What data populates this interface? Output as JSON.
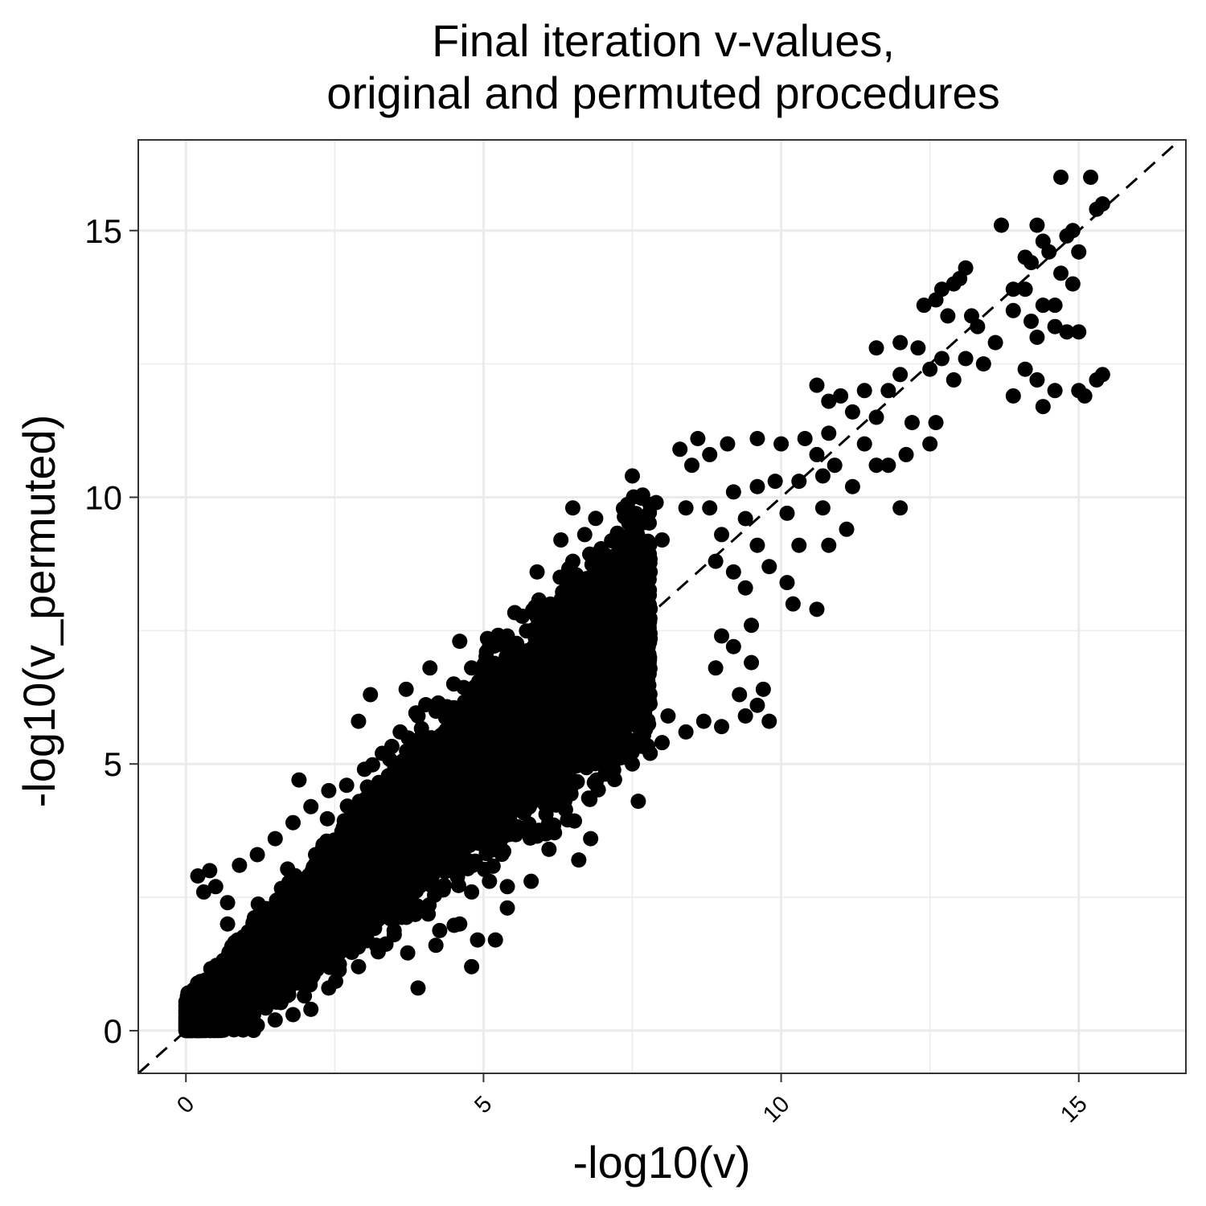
{
  "chart_data": {
    "type": "scatter",
    "title_line1": "Final iteration v-values,",
    "title_line2": "original and permuted procedures",
    "xlabel": "-log10(v)",
    "ylabel": "-log10(v_permuted)",
    "xlim": [
      -0.8,
      16.8
    ],
    "ylim": [
      -0.8,
      16.7
    ],
    "x_ticks": [
      {
        "value": 0,
        "label": "0"
      },
      {
        "value": 5,
        "label": "5"
      },
      {
        "value": 10,
        "label": "10"
      },
      {
        "value": 15,
        "label": "15"
      }
    ],
    "y_ticks": [
      {
        "value": 0,
        "label": "0"
      },
      {
        "value": 5,
        "label": "5"
      },
      {
        "value": 10,
        "label": "10"
      },
      {
        "value": 15,
        "label": "15"
      }
    ],
    "minor_breaks_x": [
      2.5,
      7.5,
      12.5
    ],
    "minor_breaks_y": [
      2.5,
      7.5,
      12.5
    ],
    "reference_line": {
      "slope": 1,
      "intercept": 0,
      "style": "dashed"
    },
    "point_color": "#000000",
    "panel_border_color": "#333333",
    "grid_color": "#ebebeb",
    "grid": true,
    "legend": "none",
    "points": [
      [
        14.7,
        16.0
      ],
      [
        15.2,
        16.0
      ],
      [
        15.4,
        15.5
      ],
      [
        15.3,
        15.4
      ],
      [
        14.3,
        15.1
      ],
      [
        13.7,
        15.1
      ],
      [
        14.9,
        15.0
      ],
      [
        14.4,
        14.8
      ],
      [
        14.8,
        14.9
      ],
      [
        14.5,
        14.6
      ],
      [
        15.0,
        14.6
      ],
      [
        14.1,
        14.5
      ],
      [
        14.2,
        14.4
      ],
      [
        13.1,
        14.3
      ],
      [
        13.0,
        14.1
      ],
      [
        12.9,
        14.0
      ],
      [
        12.7,
        13.9
      ],
      [
        13.9,
        13.9
      ],
      [
        14.1,
        13.9
      ],
      [
        14.9,
        14.0
      ],
      [
        14.7,
        14.2
      ],
      [
        14.4,
        13.6
      ],
      [
        14.6,
        13.6
      ],
      [
        13.9,
        13.5
      ],
      [
        12.4,
        13.6
      ],
      [
        12.6,
        13.7
      ],
      [
        13.2,
        13.4
      ],
      [
        12.8,
        13.4
      ],
      [
        14.2,
        13.3
      ],
      [
        14.6,
        13.2
      ],
      [
        13.3,
        13.2
      ],
      [
        13.6,
        12.9
      ],
      [
        14.8,
        13.1
      ],
      [
        15.0,
        13.1
      ],
      [
        14.3,
        13.0
      ],
      [
        12.0,
        12.9
      ],
      [
        11.6,
        12.8
      ],
      [
        12.3,
        12.8
      ],
      [
        12.7,
        12.6
      ],
      [
        13.4,
        12.5
      ],
      [
        12.5,
        12.4
      ],
      [
        13.1,
        12.6
      ],
      [
        14.1,
        12.4
      ],
      [
        14.3,
        12.2
      ],
      [
        14.6,
        12.0
      ],
      [
        15.1,
        11.9
      ],
      [
        15.0,
        12.0
      ],
      [
        15.4,
        12.3
      ],
      [
        15.3,
        12.2
      ],
      [
        14.4,
        11.7
      ],
      [
        13.9,
        11.9
      ],
      [
        12.9,
        12.2
      ],
      [
        12.0,
        12.3
      ],
      [
        11.8,
        12.0
      ],
      [
        11.4,
        12.0
      ],
      [
        11.0,
        11.9
      ],
      [
        10.6,
        12.1
      ],
      [
        10.8,
        11.8
      ],
      [
        11.2,
        11.6
      ],
      [
        11.6,
        11.5
      ],
      [
        12.2,
        11.4
      ],
      [
        12.6,
        11.4
      ],
      [
        12.5,
        11.0
      ],
      [
        12.1,
        10.8
      ],
      [
        11.4,
        11.0
      ],
      [
        10.8,
        11.2
      ],
      [
        10.4,
        11.1
      ],
      [
        10.0,
        11.0
      ],
      [
        9.6,
        11.1
      ],
      [
        9.1,
        11.0
      ],
      [
        8.6,
        11.1
      ],
      [
        8.3,
        10.9
      ],
      [
        8.5,
        10.6
      ],
      [
        8.8,
        10.8
      ],
      [
        10.6,
        10.8
      ],
      [
        10.9,
        10.6
      ],
      [
        11.6,
        10.6
      ],
      [
        11.8,
        10.6
      ],
      [
        10.7,
        10.4
      ],
      [
        10.3,
        10.3
      ],
      [
        9.9,
        10.3
      ],
      [
        9.6,
        10.2
      ],
      [
        9.2,
        10.1
      ],
      [
        7.5,
        10.4
      ],
      [
        7.9,
        9.9
      ],
      [
        8.4,
        9.8
      ],
      [
        8.8,
        9.8
      ],
      [
        9.4,
        9.6
      ],
      [
        10.1,
        9.7
      ],
      [
        10.7,
        9.8
      ],
      [
        11.2,
        10.2
      ],
      [
        12.0,
        9.8
      ],
      [
        11.1,
        9.4
      ],
      [
        10.8,
        9.1
      ],
      [
        10.3,
        9.1
      ],
      [
        9.6,
        9.1
      ],
      [
        9.0,
        9.3
      ],
      [
        9.8,
        8.7
      ],
      [
        10.1,
        8.4
      ],
      [
        9.2,
        8.6
      ],
      [
        8.9,
        8.8
      ],
      [
        9.4,
        8.3
      ],
      [
        10.2,
        8.0
      ],
      [
        10.6,
        7.9
      ],
      [
        9.5,
        7.6
      ],
      [
        9.0,
        7.4
      ],
      [
        9.2,
        7.2
      ],
      [
        8.9,
        6.8
      ],
      [
        9.5,
        6.9
      ],
      [
        9.7,
        6.4
      ],
      [
        9.3,
        6.3
      ],
      [
        9.6,
        6.1
      ],
      [
        9.4,
        5.9
      ],
      [
        9.8,
        5.8
      ],
      [
        9.0,
        5.7
      ],
      [
        8.7,
        5.8
      ],
      [
        8.4,
        5.6
      ],
      [
        8.0,
        5.4
      ],
      [
        7.8,
        5.2
      ],
      [
        7.5,
        5.0
      ],
      [
        7.2,
        5.2
      ],
      [
        7.1,
        5.0
      ],
      [
        6.9,
        4.7
      ],
      [
        7.6,
        4.3
      ],
      [
        8.1,
        5.9
      ],
      [
        7.6,
        6.1
      ],
      [
        6.5,
        9.8
      ],
      [
        6.7,
        9.3
      ],
      [
        6.3,
        9.2
      ],
      [
        6.5,
        8.8
      ],
      [
        5.9,
        8.6
      ],
      [
        7.4,
        9.0
      ],
      [
        8.0,
        9.2
      ],
      [
        7.1,
        6.3
      ],
      [
        6.7,
        6.0
      ],
      [
        6.3,
        5.6
      ],
      [
        6.8,
        3.6
      ],
      [
        6.6,
        3.2
      ],
      [
        6.1,
        3.4
      ],
      [
        5.8,
        2.8
      ],
      [
        5.4,
        2.7
      ],
      [
        5.1,
        2.8
      ],
      [
        4.8,
        2.6
      ],
      [
        5.4,
        2.3
      ],
      [
        5.2,
        1.7
      ],
      [
        4.9,
        1.7
      ],
      [
        4.8,
        1.2
      ],
      [
        3.9,
        0.8
      ],
      [
        4.2,
        1.6
      ],
      [
        4.6,
        2.0
      ],
      [
        3.5,
        1.8
      ],
      [
        3.2,
        1.6
      ],
      [
        2.9,
        1.2
      ],
      [
        2.4,
        0.8
      ],
      [
        2.1,
        0.4
      ],
      [
        1.8,
        0.3
      ],
      [
        1.5,
        0.2
      ],
      [
        1.2,
        0.1
      ],
      [
        0.9,
        0.05
      ],
      [
        0.6,
        0.02
      ],
      [
        0.2,
        2.9
      ],
      [
        0.3,
        2.6
      ],
      [
        0.4,
        3.0
      ],
      [
        0.5,
        2.7
      ],
      [
        0.7,
        2.4
      ],
      [
        0.9,
        3.1
      ],
      [
        1.2,
        3.3
      ],
      [
        1.5,
        3.6
      ],
      [
        1.8,
        3.9
      ],
      [
        2.1,
        4.2
      ],
      [
        2.4,
        4.5
      ],
      [
        2.7,
        4.6
      ],
      [
        3.0,
        4.9
      ],
      [
        3.3,
        5.2
      ],
      [
        3.6,
        5.6
      ],
      [
        3.9,
        5.9
      ],
      [
        4.2,
        6.1
      ],
      [
        4.5,
        6.5
      ],
      [
        4.8,
        6.8
      ],
      [
        5.1,
        7.2
      ],
      [
        5.4,
        7.4
      ],
      [
        3.1,
        6.3
      ],
      [
        3.7,
        6.4
      ],
      [
        4.1,
        6.8
      ],
      [
        4.6,
        7.3
      ],
      [
        2.9,
        5.8
      ],
      [
        1.9,
        4.7
      ],
      [
        0.7,
        2.0
      ],
      [
        0.8,
        1.6
      ],
      [
        1.0,
        1.4
      ]
    ],
    "dense_region": {
      "x_min": 0,
      "x_max": 7.8,
      "band_width_y": 3.0,
      "points_generated": 22000,
      "note": "cloud of tens of thousands of points concentrated along y = x with spread proportional to x"
    }
  }
}
